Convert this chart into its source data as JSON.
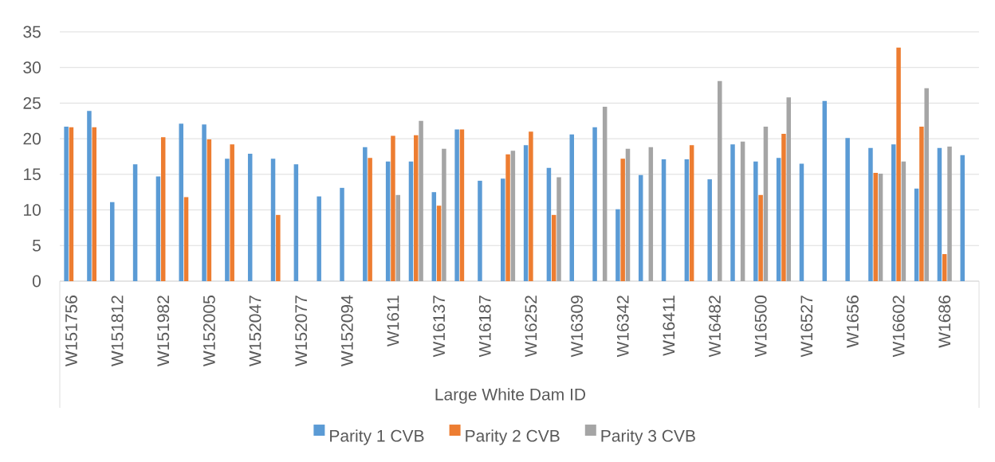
{
  "chart_data": {
    "type": "bar",
    "xlabel": "Large White Dam ID",
    "categories": [
      "W151756",
      null,
      "W151812",
      null,
      "W151982",
      null,
      "W152005",
      null,
      "W152047",
      null,
      "W152077",
      null,
      "W152094",
      null,
      "W1611",
      null,
      "W16137",
      null,
      "W16187",
      null,
      "W16252",
      null,
      "W16309",
      null,
      "W16342",
      null,
      "W16411",
      null,
      "W16482",
      null,
      "W16500",
      null,
      "W16527",
      null,
      "W1656",
      null,
      "W16602",
      null,
      "W1686",
      null
    ],
    "series": [
      {
        "name": "Parity 1 CVB",
        "color": "#5b9bd5",
        "values": [
          21.7,
          23.9,
          11.1,
          16.4,
          14.7,
          22.1,
          22.0,
          17.2,
          17.9,
          17.2,
          16.4,
          11.9,
          13.1,
          18.8,
          16.8,
          16.8,
          12.5,
          21.3,
          14.1,
          14.4,
          19.1,
          15.9,
          20.6,
          21.6,
          10.1,
          14.9,
          17.1,
          17.1,
          14.3,
          19.2,
          16.8,
          17.3,
          16.5,
          25.3,
          20.1,
          18.7,
          19.2,
          13.0,
          18.7,
          17.7
        ]
      },
      {
        "name": "Parity 2 CVB",
        "color": "#ed7d31",
        "values": [
          21.6,
          21.6,
          null,
          null,
          20.2,
          11.8,
          19.9,
          19.2,
          null,
          9.3,
          null,
          null,
          null,
          17.3,
          20.4,
          20.5,
          10.6,
          21.3,
          null,
          17.8,
          21.0,
          9.3,
          null,
          null,
          17.2,
          null,
          null,
          19.1,
          null,
          null,
          12.1,
          20.7,
          null,
          null,
          null,
          15.2,
          32.8,
          21.7,
          3.8,
          null
        ]
      },
      {
        "name": "Parity 3 CVB",
        "color": "#a5a5a5",
        "values": [
          null,
          null,
          null,
          null,
          null,
          null,
          null,
          null,
          null,
          null,
          null,
          null,
          null,
          null,
          12.1,
          22.5,
          18.6,
          null,
          null,
          18.3,
          null,
          14.6,
          null,
          24.5,
          18.6,
          18.8,
          null,
          null,
          28.1,
          19.6,
          21.7,
          25.8,
          null,
          null,
          null,
          15.1,
          16.8,
          27.1,
          18.9,
          null
        ]
      }
    ],
    "ylim": [
      0,
      35
    ],
    "yticks": [
      0,
      5,
      10,
      15,
      20,
      25,
      30,
      35
    ],
    "grid": "y",
    "legend": "bottom"
  }
}
